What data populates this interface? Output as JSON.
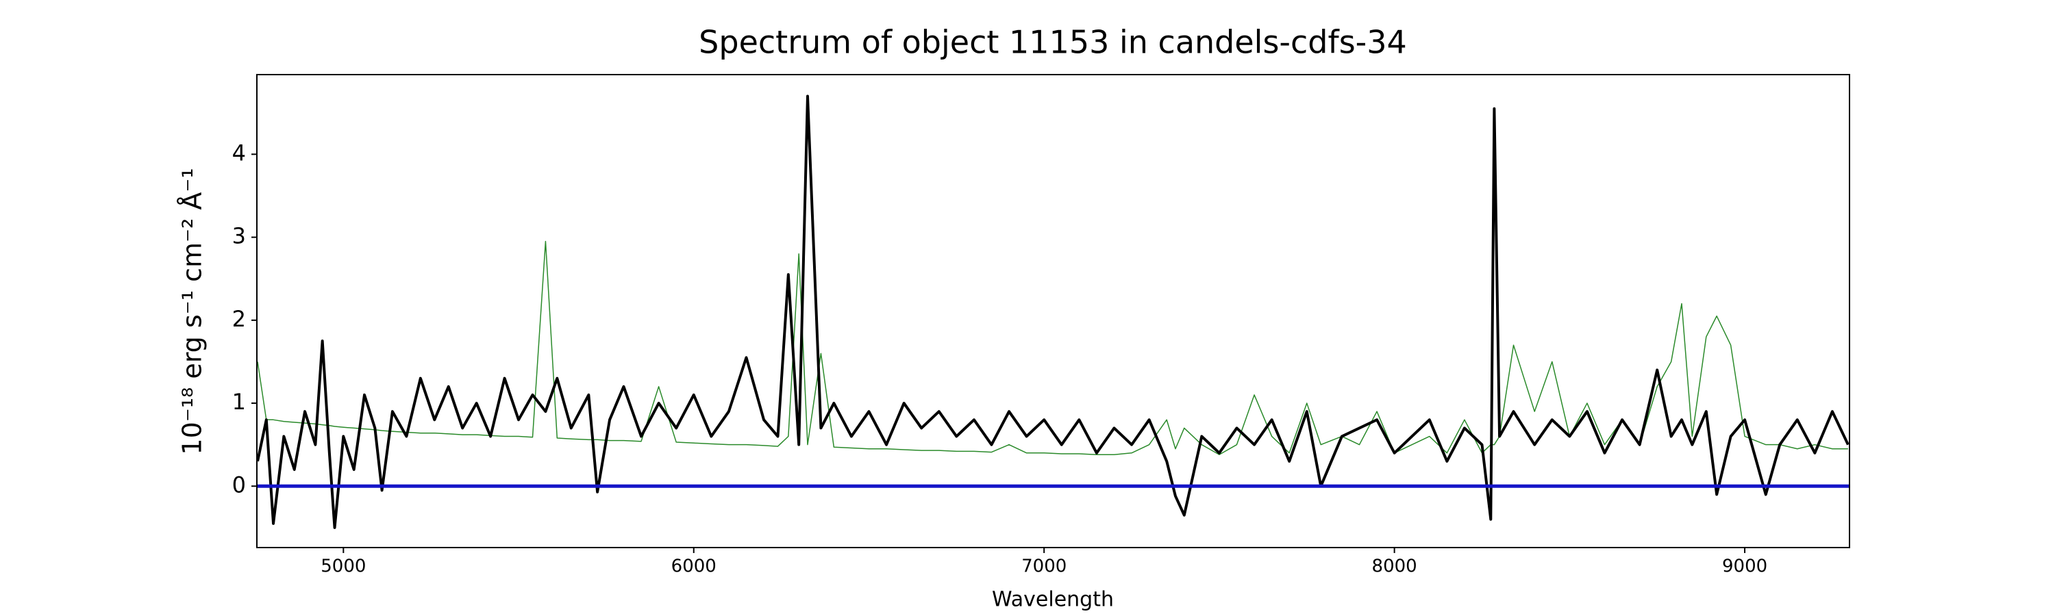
{
  "chart_data": {
    "type": "line",
    "title": "Spectrum of object 11153 in candels-cdfs-34",
    "x_label": "Wavelength",
    "y_label": "10⁻¹⁸ erg s⁻¹ cm⁻² Å⁻¹",
    "xlim": [
      4753,
      9299
    ],
    "ylim": [
      -0.74,
      4.96
    ],
    "xticks": [
      5000,
      6000,
      7000,
      8000,
      9000
    ],
    "yticks": [
      0,
      1,
      2,
      3,
      4
    ],
    "x": [
      4755,
      4780,
      4800,
      4830,
      4860,
      4890,
      4920,
      4940,
      4960,
      4975,
      5000,
      5030,
      5060,
      5090,
      5110,
      5140,
      5180,
      5220,
      5260,
      5300,
      5340,
      5380,
      5420,
      5460,
      5500,
      5540,
      5577,
      5610,
      5650,
      5700,
      5725,
      5760,
      5800,
      5850,
      5900,
      5950,
      6000,
      6050,
      6100,
      6150,
      6200,
      6240,
      6270,
      6300,
      6325,
      6363,
      6400,
      6450,
      6500,
      6550,
      6600,
      6650,
      6700,
      6750,
      6800,
      6850,
      6900,
      6950,
      7000,
      7050,
      7100,
      7150,
      7200,
      7250,
      7300,
      7350,
      7375,
      7400,
      7450,
      7500,
      7550,
      7600,
      7650,
      7700,
      7750,
      7790,
      7850,
      7900,
      7950,
      8000,
      8050,
      8100,
      8150,
      8200,
      8250,
      8275,
      8285,
      8300,
      8340,
      8400,
      8450,
      8500,
      8550,
      8600,
      8650,
      8700,
      8750,
      8790,
      8820,
      8850,
      8890,
      8920,
      8960,
      9000,
      9060,
      9100,
      9150,
      9200,
      9250,
      9295
    ],
    "series": [
      {
        "color": "#2a8a2a",
        "width": 1.5,
        "values": [
          1.5,
          0.8,
          0.8,
          0.78,
          0.77,
          0.76,
          0.75,
          0.74,
          0.73,
          0.72,
          0.71,
          0.7,
          0.69,
          0.68,
          0.67,
          0.66,
          0.65,
          0.64,
          0.64,
          0.63,
          0.62,
          0.62,
          0.61,
          0.6,
          0.6,
          0.59,
          2.95,
          0.58,
          0.57,
          0.56,
          0.56,
          0.55,
          0.55,
          0.54,
          1.2,
          0.53,
          0.52,
          0.51,
          0.5,
          0.5,
          0.49,
          0.48,
          0.6,
          2.8,
          0.5,
          1.6,
          0.47,
          0.46,
          0.45,
          0.45,
          0.44,
          0.43,
          0.43,
          0.42,
          0.42,
          0.41,
          0.5,
          0.4,
          0.4,
          0.39,
          0.39,
          0.38,
          0.38,
          0.4,
          0.5,
          0.8,
          0.45,
          0.7,
          0.5,
          0.38,
          0.5,
          1.1,
          0.6,
          0.4,
          1.0,
          0.5,
          0.6,
          0.5,
          0.9,
          0.4,
          0.5,
          0.6,
          0.4,
          0.8,
          0.4,
          0.5,
          0.5,
          0.6,
          1.7,
          0.9,
          1.5,
          0.6,
          1.0,
          0.5,
          0.8,
          0.5,
          1.2,
          1.5,
          2.2,
          0.6,
          1.8,
          2.05,
          1.7,
          0.6,
          0.5,
          0.5,
          0.45,
          0.5,
          0.45,
          0.45
        ]
      },
      {
        "color": "#000000",
        "width": 4,
        "values": [
          0.3,
          0.8,
          -0.45,
          0.6,
          0.2,
          0.9,
          0.5,
          1.75,
          0.4,
          -0.5,
          0.6,
          0.2,
          1.1,
          0.7,
          -0.05,
          0.9,
          0.6,
          1.3,
          0.8,
          1.2,
          0.7,
          1.0,
          0.6,
          1.3,
          0.8,
          1.1,
          0.9,
          1.3,
          0.7,
          1.1,
          -0.07,
          0.8,
          1.2,
          0.6,
          1.0,
          0.7,
          1.1,
          0.6,
          0.9,
          1.55,
          0.8,
          0.6,
          2.55,
          0.5,
          4.7,
          0.7,
          1.0,
          0.6,
          0.9,
          0.5,
          1.0,
          0.7,
          0.9,
          0.6,
          0.8,
          0.5,
          0.9,
          0.6,
          0.8,
          0.5,
          0.8,
          0.4,
          0.7,
          0.5,
          0.8,
          0.3,
          -0.12,
          -0.35,
          0.6,
          0.4,
          0.7,
          0.5,
          0.8,
          0.3,
          0.9,
          0.0,
          0.6,
          0.7,
          0.8,
          0.4,
          0.6,
          0.8,
          0.3,
          0.7,
          0.5,
          -0.4,
          4.55,
          0.6,
          0.9,
          0.5,
          0.8,
          0.6,
          0.9,
          0.4,
          0.8,
          0.5,
          1.4,
          0.6,
          0.8,
          0.5,
          0.9,
          -0.1,
          0.6,
          0.8,
          -0.1,
          0.5,
          0.8,
          0.4,
          0.9,
          0.5
        ]
      }
    ],
    "hlines": [
      {
        "y": 0,
        "color": "#1515c8"
      }
    ]
  }
}
